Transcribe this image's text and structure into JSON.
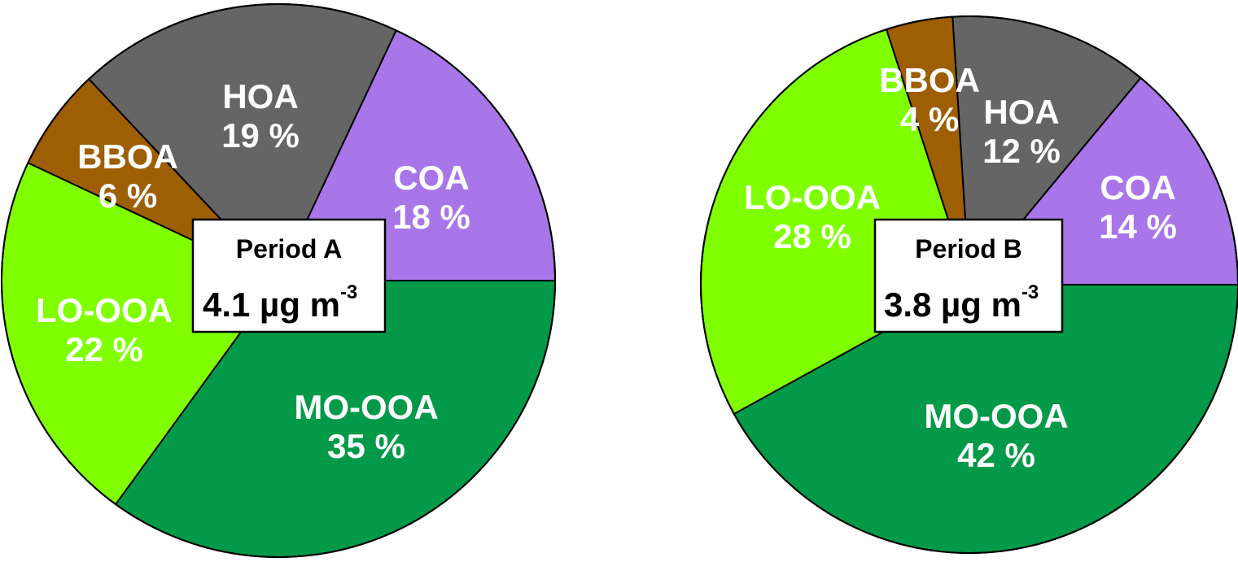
{
  "chart_data": [
    {
      "type": "pie",
      "title": "Period A",
      "concentration": {
        "value": "4.1 µg m",
        "exponent": "-3"
      },
      "start_angle_deg": 0,
      "direction": "counterclockwise",
      "slices": [
        {
          "name": "COA",
          "value": 18,
          "label": "18 %",
          "color": "#a876e8"
        },
        {
          "name": "HOA",
          "value": 19,
          "label": "19 %",
          "color": "#656565"
        },
        {
          "name": "BBOA",
          "value": 6,
          "label": "6 %",
          "color": "#9e5e04"
        },
        {
          "name": "LO-OOA",
          "value": 22,
          "label": "22 %",
          "color": "#80ff00"
        },
        {
          "name": "MO-OOA",
          "value": 35,
          "label": "35 %",
          "color": "#029a48"
        }
      ]
    },
    {
      "type": "pie",
      "title": "Period B",
      "concentration": {
        "value": "3.8 µg m",
        "exponent": "-3"
      },
      "start_angle_deg": 0,
      "direction": "counterclockwise",
      "slices": [
        {
          "name": "COA",
          "value": 14,
          "label": "14 %",
          "color": "#a876e8"
        },
        {
          "name": "HOA",
          "value": 12,
          "label": "12 %",
          "color": "#656565"
        },
        {
          "name": "BBOA",
          "value": 4,
          "label": "4 %",
          "color": "#9e5e04"
        },
        {
          "name": "LO-OOA",
          "value": 28,
          "label": "28 %",
          "color": "#80ff00"
        },
        {
          "name": "MO-OOA",
          "value": 42,
          "label": "42 %",
          "color": "#029a48"
        }
      ]
    }
  ]
}
